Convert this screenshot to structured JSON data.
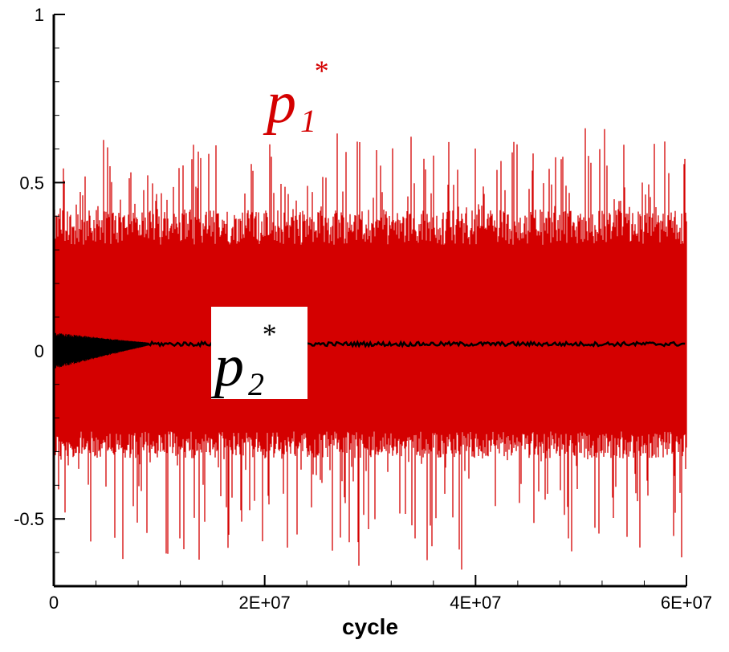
{
  "chart_data": {
    "type": "line",
    "title": "",
    "xlabel": "cycle",
    "ylabel": "",
    "xlim": [
      0,
      60000000
    ],
    "ylim": [
      -0.7,
      1.0
    ],
    "x_ticks": [
      {
        "value": 0,
        "label": "0"
      },
      {
        "value": 20000000,
        "label": "2E+07"
      },
      {
        "value": 40000000,
        "label": "4E+07"
      },
      {
        "value": 60000000,
        "label": "6E+07"
      }
    ],
    "y_ticks": [
      {
        "value": -0.5,
        "label": "-0.5"
      },
      {
        "value": 0,
        "label": "0"
      },
      {
        "value": 0.5,
        "label": "0.5"
      },
      {
        "value": 1,
        "label": "1"
      }
    ],
    "grid": false,
    "legend": "none",
    "series": [
      {
        "name": "p1*",
        "label_main": "p",
        "label_sub": "1",
        "label_sup": "*",
        "color": "#d40000",
        "rendering": "dense oscillation envelope",
        "upper_envelope_typical": 0.42,
        "lower_envelope_typical": -0.32,
        "max": 0.7,
        "min": -0.67
      },
      {
        "name": "p2*",
        "label_main": "p",
        "label_sub": "2",
        "label_sup": "*",
        "color": "#000000",
        "rendering": "decaying oscillation then near-constant",
        "initial_amplitude": 0.05,
        "decay_end_x": 9000000,
        "steady_value": 0.02
      }
    ]
  }
}
